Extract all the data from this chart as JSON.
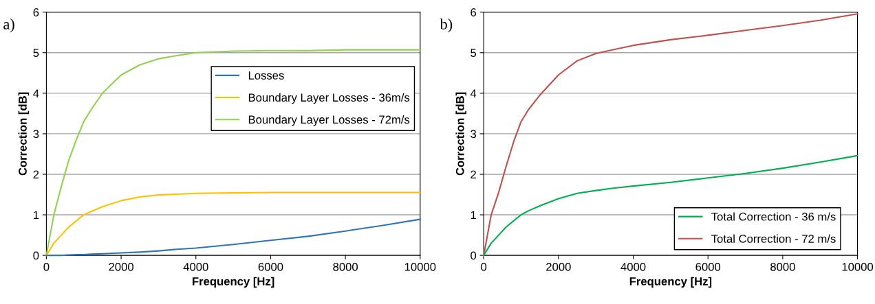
{
  "chart_data": [
    {
      "type": "line",
      "xlabel": "Frequency [Hz]",
      "ylabel": "Correction [dB]",
      "annotations": [
        "a)"
      ],
      "xlim": [
        0,
        10000
      ],
      "xticks": [
        0,
        2000,
        4000,
        6000,
        8000,
        10000
      ],
      "ylim": [
        0,
        6
      ],
      "yticks": [
        0,
        1,
        2,
        3,
        4,
        5,
        6
      ],
      "grid": "y",
      "legend": "right",
      "marker": "none",
      "line_style": "solid",
      "x": [
        0,
        200,
        400,
        600,
        800,
        1000,
        1200,
        1500,
        2000,
        2500,
        3000,
        3500,
        4000,
        5000,
        6000,
        7000,
        8000,
        9000,
        10000
      ],
      "series": [
        {
          "name": "Losses",
          "color": "#2e75b6",
          "values": [
            0,
            0,
            0,
            0.01,
            0.02,
            0.02,
            0.03,
            0.04,
            0.06,
            0.08,
            0.11,
            0.15,
            0.18,
            0.27,
            0.37,
            0.47,
            0.6,
            0.74,
            0.89
          ]
        },
        {
          "name": "Boundary Layer Losses - 36m/s",
          "color": "#ffc000",
          "values": [
            0,
            0.3,
            0.5,
            0.7,
            0.85,
            1.0,
            1.08,
            1.2,
            1.35,
            1.44,
            1.49,
            1.51,
            1.53,
            1.54,
            1.55,
            1.55,
            1.55,
            1.55,
            1.55
          ]
        },
        {
          "name": "Boundary Layer Losses - 72m/s",
          "color": "#92d050",
          "values": [
            0,
            1.0,
            1.7,
            2.35,
            2.85,
            3.3,
            3.6,
            4.0,
            4.45,
            4.7,
            4.85,
            4.93,
            5.0,
            5.04,
            5.05,
            5.05,
            5.07,
            5.07,
            5.07
          ]
        }
      ]
    },
    {
      "type": "line",
      "xlabel": "Frequency [Hz]",
      "ylabel": "Correction [dB]",
      "annotations": [
        "b)"
      ],
      "xlim": [
        0,
        10000
      ],
      "xticks": [
        0,
        2000,
        4000,
        6000,
        8000,
        10000
      ],
      "ylim": [
        0,
        6
      ],
      "yticks": [
        0,
        1,
        2,
        3,
        4,
        5,
        6
      ],
      "grid": "y",
      "legend": "bottom right",
      "marker": "none",
      "line_style": "solid",
      "x": [
        0,
        200,
        400,
        600,
        800,
        1000,
        1200,
        1500,
        2000,
        2500,
        3000,
        3500,
        4000,
        5000,
        6000,
        7000,
        8000,
        9000,
        10000
      ],
      "series": [
        {
          "name": "Total Correction - 36 m/s",
          "color": "#00b050",
          "values": [
            0,
            0.3,
            0.5,
            0.7,
            0.85,
            1.0,
            1.1,
            1.22,
            1.4,
            1.53,
            1.6,
            1.66,
            1.71,
            1.8,
            1.91,
            2.02,
            2.15,
            2.3,
            2.46
          ]
        },
        {
          "name": "Total Correction - 72 m/s",
          "color": "#c0504d",
          "values": [
            0,
            1.0,
            1.55,
            2.2,
            2.8,
            3.3,
            3.6,
            3.95,
            4.45,
            4.8,
            4.98,
            5.08,
            5.18,
            5.32,
            5.43,
            5.55,
            5.67,
            5.8,
            5.96
          ]
        }
      ]
    }
  ]
}
